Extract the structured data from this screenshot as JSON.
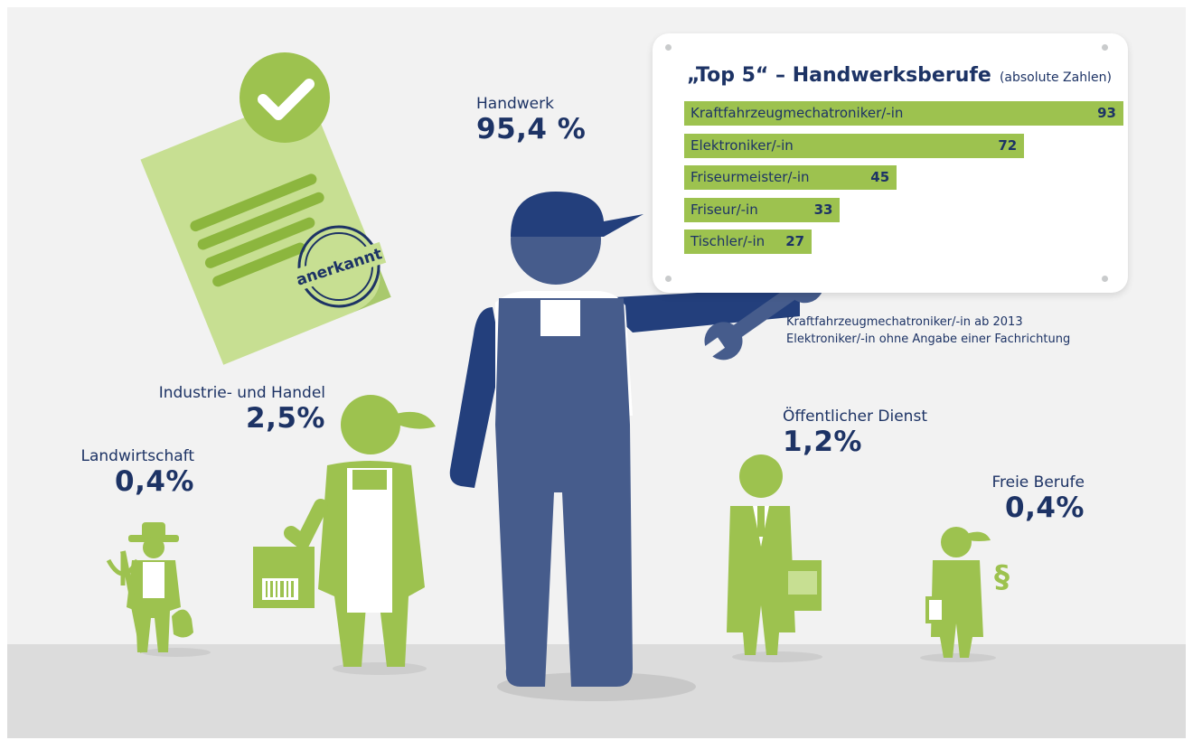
{
  "colors": {
    "navy": "#1d3365",
    "figure_blue": "#465c8c",
    "cap_blue": "#233f7c",
    "green": "#9dc24f",
    "light_green": "#c7df92",
    "background": "#f2f2f2",
    "floor": "#dcdcdc"
  },
  "icons": {
    "document": "certificate-document-icon",
    "check": "checkmark-icon",
    "stamp": "stamp-icon",
    "wrench": "wrench-icon"
  },
  "document": {
    "stamp_text": "anerkannt"
  },
  "sectors": [
    {
      "name": "Handwerk",
      "value": "95,4 %"
    },
    {
      "name": "Industrie- und Handel",
      "value": "2,5%"
    },
    {
      "name": "Landwirtschaft",
      "value": "0,4%"
    },
    {
      "name": "Öffentlicher Dienst",
      "value": "1,2%"
    },
    {
      "name": "Freie Berufe",
      "value": "0,4%"
    }
  ],
  "chart_data": {
    "type": "bar",
    "orientation": "horizontal",
    "title": "„Top 5“ – Handwerksberufe",
    "subtitle": "(absolute Zahlen)",
    "categories": [
      "Kraftfahrzeugmechatroniker/-in",
      "Elektroniker/-in",
      "Friseurmeister/-in",
      "Friseur/-in",
      "Tischler/-in"
    ],
    "values": [
      93,
      72,
      45,
      33,
      27
    ],
    "xlim": [
      0,
      93
    ],
    "grid": false,
    "legend": "none",
    "footnotes": [
      "Kraftfahrzeugmechatroniker/-in ab 2013",
      "Elektroniker/-in ohne Angabe einer Fachrichtung"
    ]
  }
}
